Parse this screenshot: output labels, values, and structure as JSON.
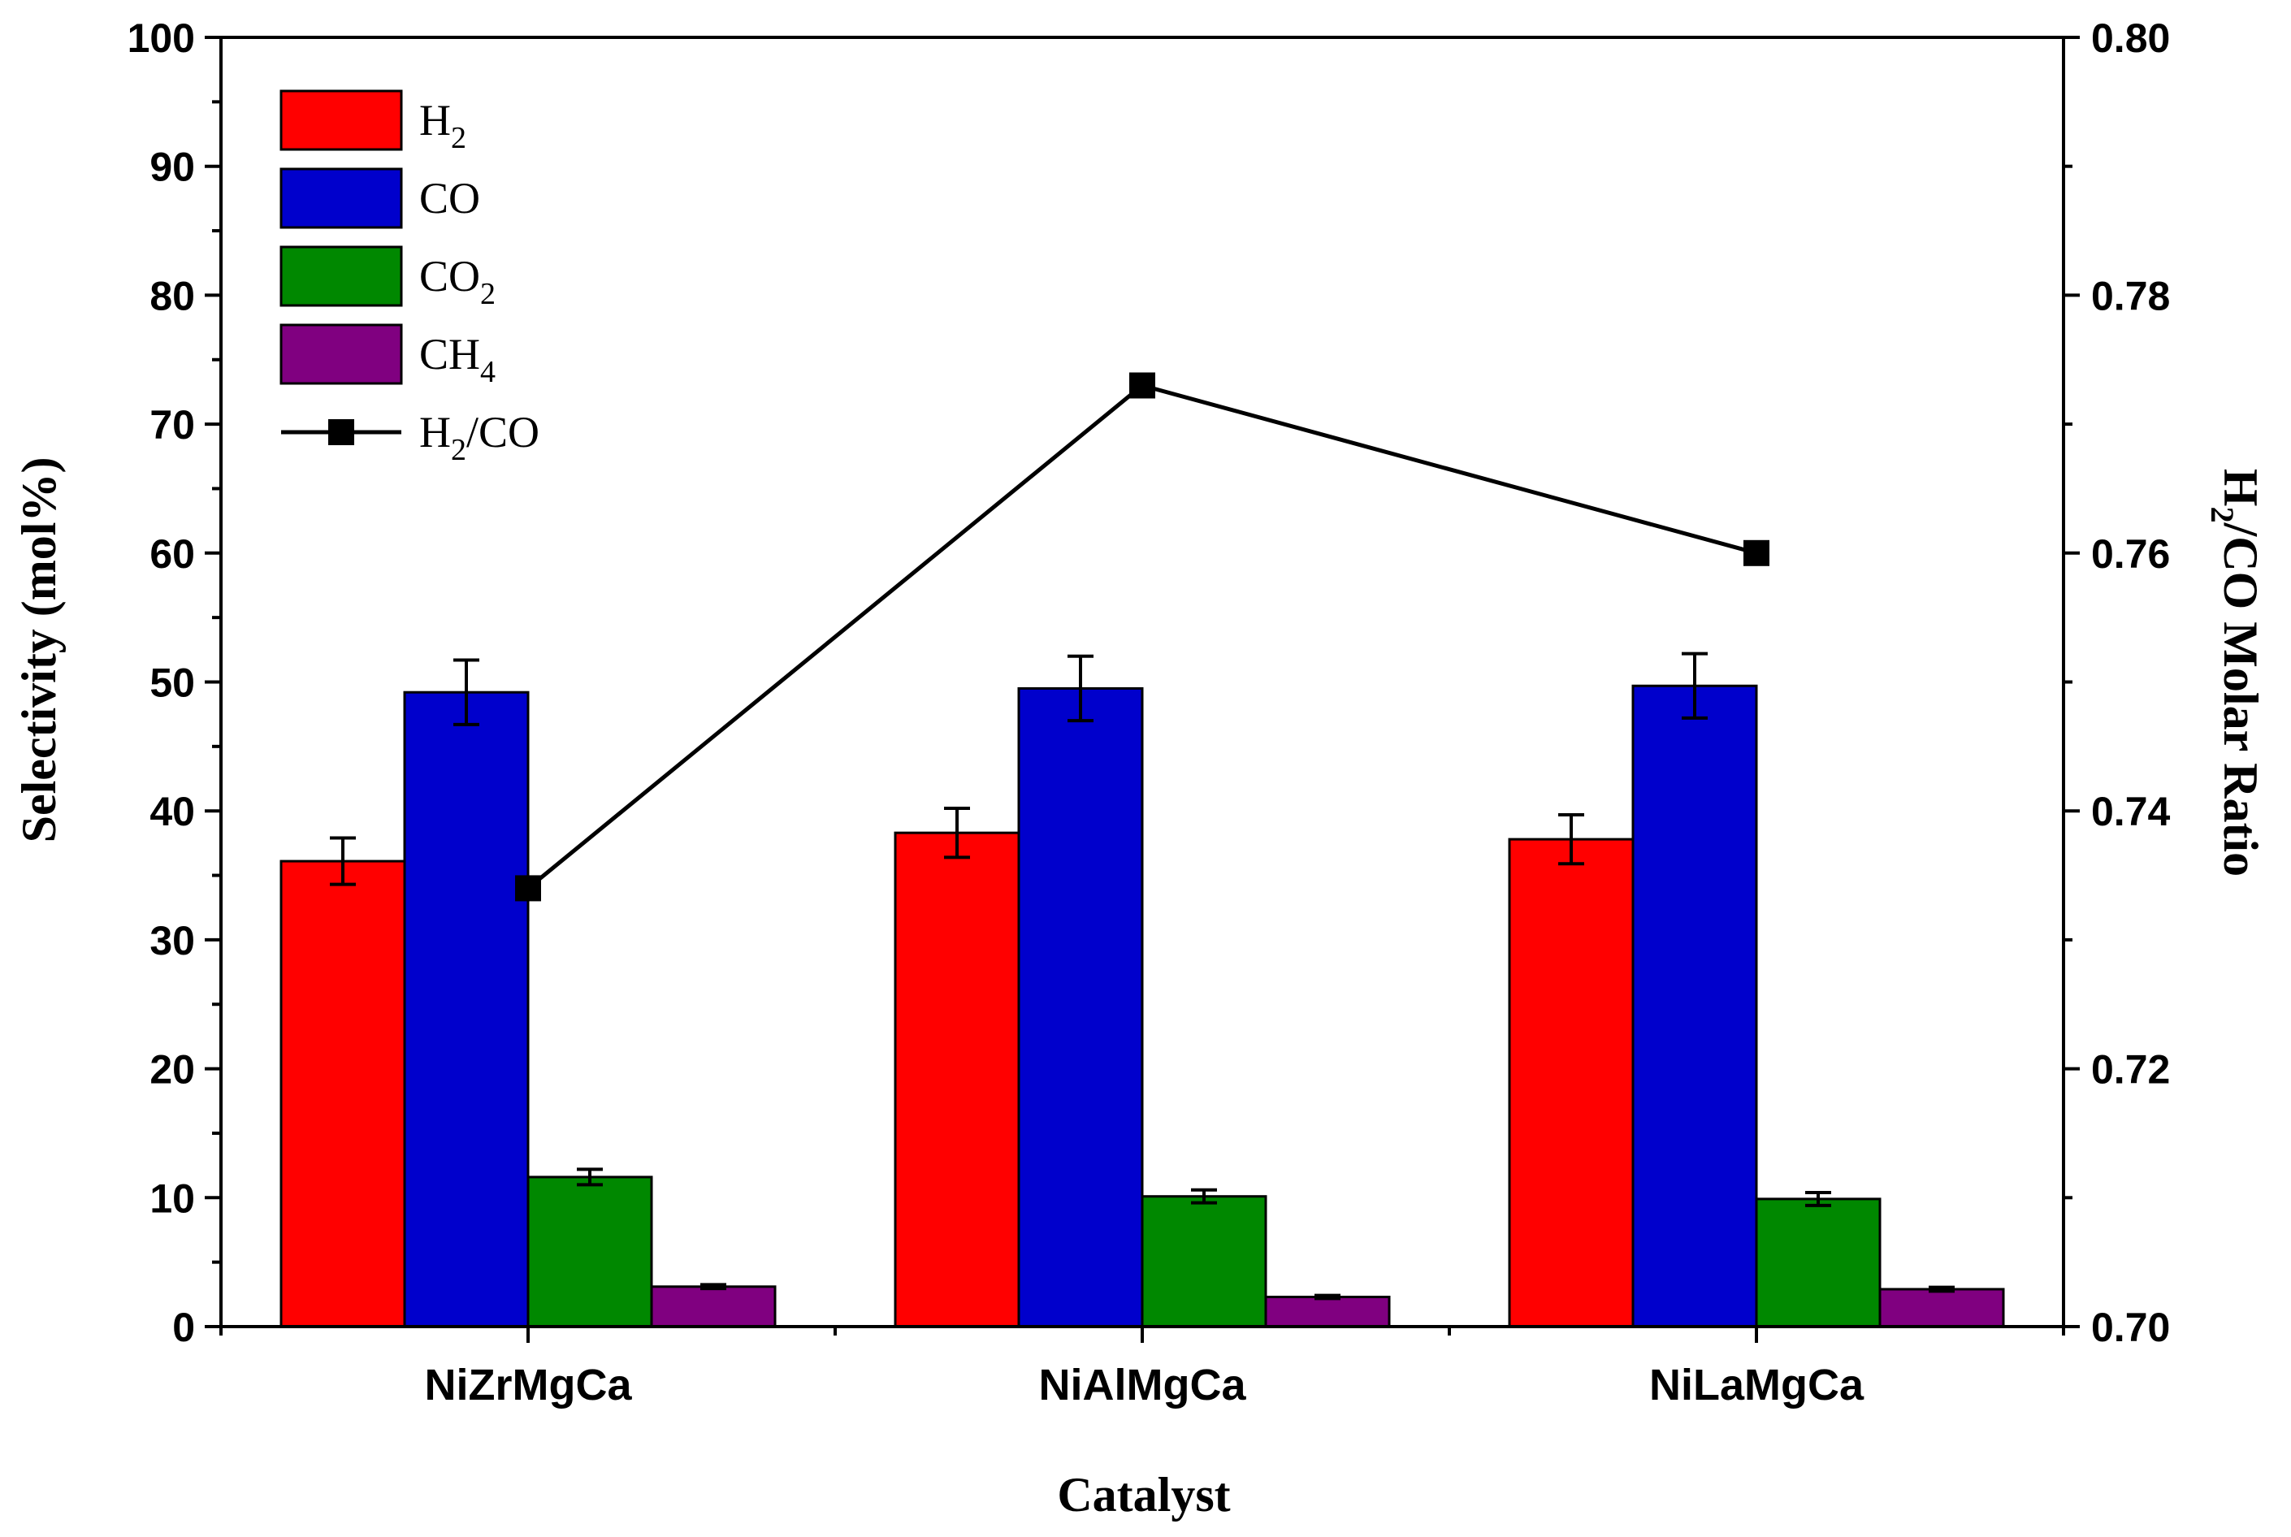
{
  "chart_data": {
    "type": "bar",
    "categories": [
      "NiZrMgCa",
      "NiAlMgCa",
      "NiLaMgCa"
    ],
    "series": [
      {
        "name": "H2",
        "label_main": "H",
        "label_sub": "2",
        "label_tail": "",
        "color": "#ff0000",
        "values": [
          36.1,
          38.3,
          37.8
        ],
        "errors": [
          1.8,
          1.9,
          1.9
        ]
      },
      {
        "name": "CO",
        "label_main": "CO",
        "label_sub": "",
        "label_tail": "",
        "color": "#0000cc",
        "values": [
          49.2,
          49.5,
          49.7
        ],
        "errors": [
          2.5,
          2.5,
          2.5
        ]
      },
      {
        "name": "CO2",
        "label_main": "CO",
        "label_sub": "2",
        "label_tail": "",
        "color": "#008800",
        "values": [
          11.6,
          10.1,
          9.9
        ],
        "errors": [
          0.6,
          0.5,
          0.5
        ]
      },
      {
        "name": "CH4",
        "label_main": "CH",
        "label_sub": "4",
        "label_tail": "",
        "color": "#800080",
        "values": [
          3.1,
          2.3,
          2.9
        ],
        "errors": [
          0.15,
          0.12,
          0.15
        ]
      }
    ],
    "line_series": {
      "name": "H2/CO",
      "label_main": "H",
      "label_sub": "2",
      "label_tail": "/CO",
      "color": "#000000",
      "values": [
        0.734,
        0.773,
        0.76
      ]
    },
    "xlabel": "Catalyst",
    "ylabel": "Selectivity (mol%)",
    "y2label_main": "H",
    "y2label_sub": "2",
    "y2label_tail": "/CO Molar Ratio",
    "ylim": [
      0,
      100
    ],
    "y_ticks": [
      0,
      10,
      20,
      30,
      40,
      50,
      60,
      70,
      80,
      90,
      100
    ],
    "y2lim": [
      0.7,
      0.8
    ],
    "y2_ticks": [
      "0.70",
      "0.72",
      "0.74",
      "0.76",
      "0.78",
      "0.80"
    ],
    "legend_position": "top-left",
    "grid": false
  }
}
